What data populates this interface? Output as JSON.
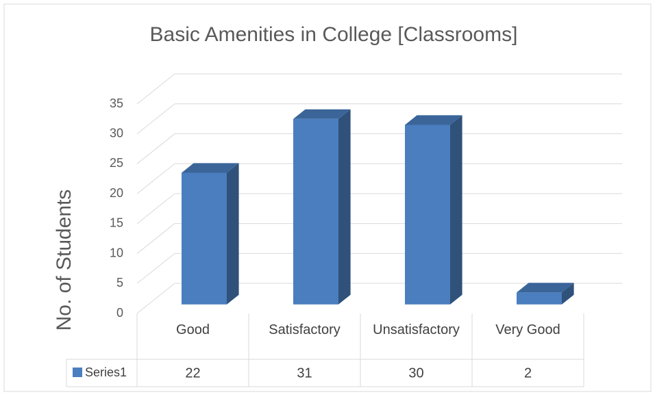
{
  "chart_data": {
    "type": "bar3d",
    "title": "Basic Amenities in College [Classrooms]",
    "y_label": "No. of Students",
    "categories": [
      "Good",
      "Satisfactory",
      "Unsatisfactory",
      "Very Good"
    ],
    "series": [
      {
        "name": "Series1",
        "color": "#4a7ebf",
        "values": [
          22,
          31,
          30,
          2
        ]
      }
    ],
    "ylim": [
      0,
      35
    ],
    "yticks": [
      0,
      5,
      10,
      15,
      20,
      25,
      30,
      35
    ],
    "grid": true,
    "data_table": true
  }
}
